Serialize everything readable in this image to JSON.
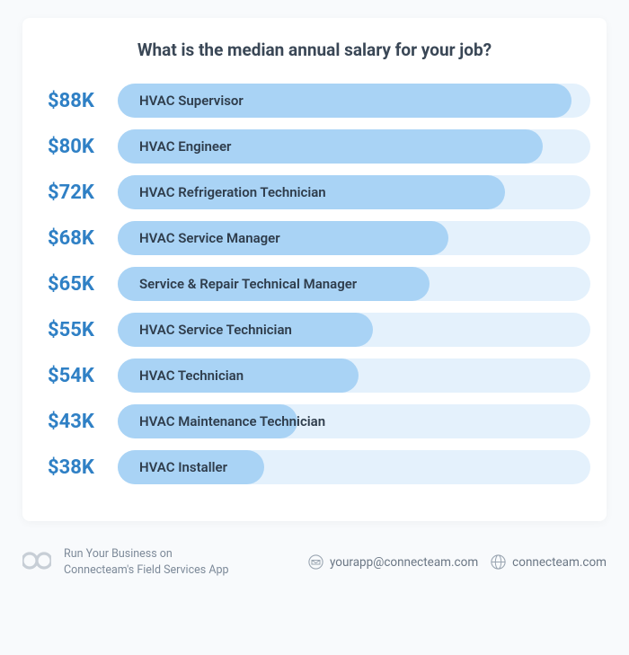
{
  "chart": {
    "title": "What is the median annual salary for your job?",
    "title_color": "#3a4756",
    "salary_color": "#2f80c5",
    "track_color": "#e4f1fc",
    "fill_color": "#a9d3f5",
    "label_color": "#2f3d4c",
    "max_value": 88,
    "rows": [
      {
        "salary": "$88K",
        "label": "HVAC Supervisor",
        "value": 88,
        "pct": 96
      },
      {
        "salary": "$80K",
        "label": "HVAC Engineer",
        "value": 80,
        "pct": 90
      },
      {
        "salary": "$72K",
        "label": "HVAC Refrigeration Technician",
        "value": 72,
        "pct": 82
      },
      {
        "salary": "$68K",
        "label": "HVAC Service Manager",
        "value": 68,
        "pct": 70
      },
      {
        "salary": "$65K",
        "label": "Service & Repair Technical Manager",
        "value": 65,
        "pct": 66
      },
      {
        "salary": "$55K",
        "label": "HVAC Service Technician",
        "value": 55,
        "pct": 54
      },
      {
        "salary": "$54K",
        "label": "HVAC Technician",
        "value": 54,
        "pct": 51
      },
      {
        "salary": "$43K",
        "label": "HVAC Maintenance Technician",
        "value": 43,
        "pct": 38
      },
      {
        "salary": "$38K",
        "label": "HVAC Installer",
        "value": 38,
        "pct": 31
      }
    ]
  },
  "footer": {
    "tagline_line1": "Run Your Business on",
    "tagline_line2": "Connecteam's Field Services App",
    "email": "yourapp@connecteam.com",
    "site": "connecteam.com",
    "muted_color": "#7d8a99"
  }
}
